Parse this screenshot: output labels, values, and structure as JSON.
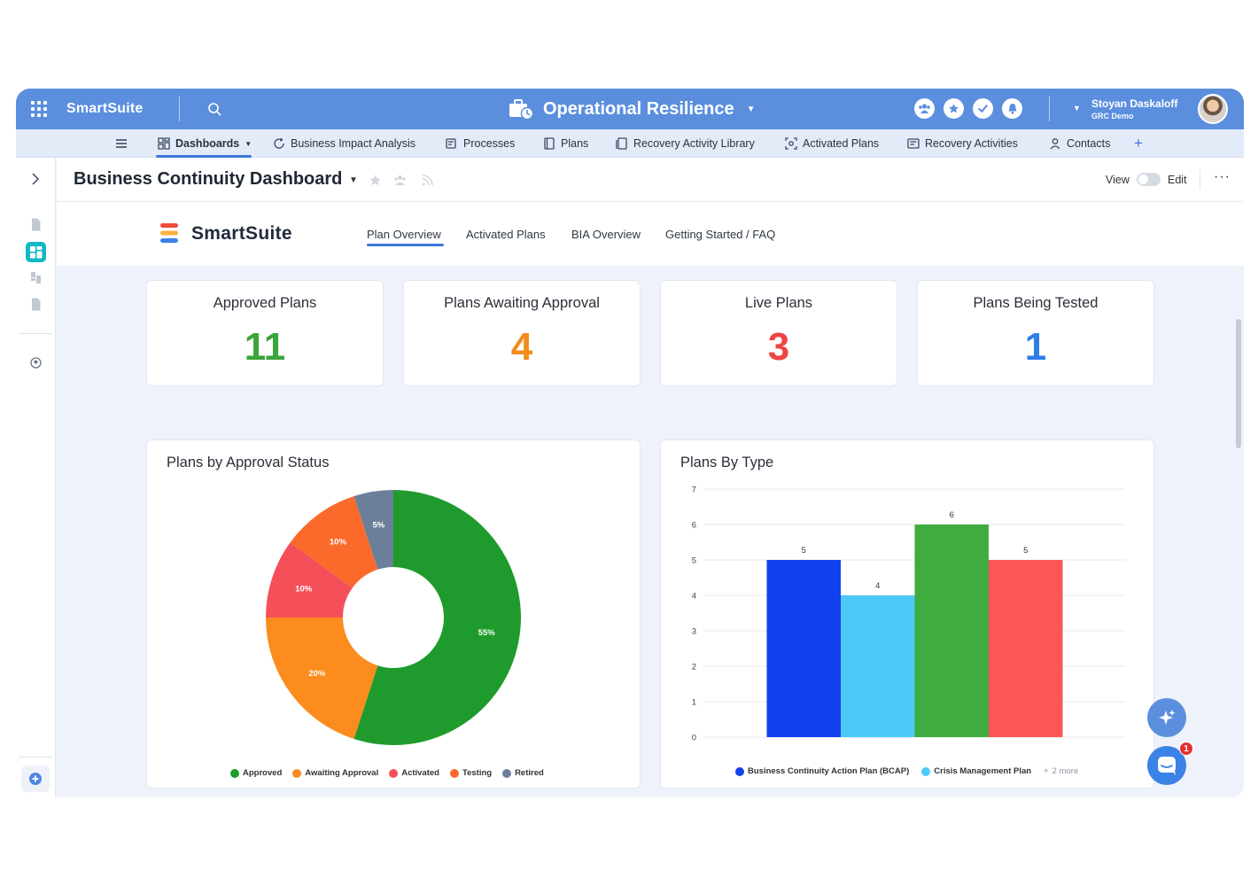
{
  "topbar": {
    "brand": "SmartSuite",
    "solution_title": "Operational Resilience",
    "user_name": "Stoyan Daskaloff",
    "user_workspace": "GRC Demo"
  },
  "nav": {
    "items": [
      {
        "label": "Dashboards",
        "icon": "dashboard-icon"
      },
      {
        "label": "Business Impact Analysis",
        "icon": "refresh-icon"
      },
      {
        "label": "Processes",
        "icon": "process-icon"
      },
      {
        "label": "Plans",
        "icon": "book-icon"
      },
      {
        "label": "Recovery Activity Library",
        "icon": "library-icon"
      },
      {
        "label": "Activated Plans",
        "icon": "activated-icon"
      },
      {
        "label": "Recovery Activities",
        "icon": "list-icon"
      },
      {
        "label": "Contacts",
        "icon": "person-icon"
      }
    ]
  },
  "dashboard": {
    "title": "Business Continuity Dashboard",
    "view_label": "View",
    "edit_label": "Edit"
  },
  "tabs": {
    "logo_text": "SmartSuite",
    "items": [
      "Plan Overview",
      "Activated Plans",
      "BIA Overview",
      "Getting Started / FAQ"
    ],
    "active": "Plan Overview"
  },
  "kpis": [
    {
      "title": "Approved Plans",
      "value": "11",
      "color": "#3aa53a"
    },
    {
      "title": "Plans Awaiting Approval",
      "value": "4",
      "color": "#f28c1b"
    },
    {
      "title": "Live Plans",
      "value": "3",
      "color": "#ef4444"
    },
    {
      "title": "Plans Being Tested",
      "value": "1",
      "color": "#2f7ee8"
    }
  ],
  "donut": {
    "title": "Plans by Approval Status",
    "legend": [
      {
        "label": "Approved",
        "color": "#1e9b2c"
      },
      {
        "label": "Awaiting Approval",
        "color": "#fb8c1d"
      },
      {
        "label": "Activated",
        "color": "#f5505a"
      },
      {
        "label": "Testing",
        "color": "#fb6a2a"
      },
      {
        "label": "Retired",
        "color": "#6b7f9a"
      }
    ]
  },
  "bar": {
    "title": "Plans By Type",
    "legend": [
      {
        "label": "Business Continuity Action Plan (BCAP)",
        "color": "#1240ec"
      },
      {
        "label": "Crisis Management Plan",
        "color": "#4ccaf7"
      }
    ],
    "more_label": "2 more"
  },
  "chart_data": [
    {
      "type": "pie",
      "title": "Plans by Approval Status",
      "categories": [
        "Approved",
        "Awaiting Approval",
        "Activated",
        "Testing",
        "Retired"
      ],
      "values": [
        55,
        20,
        10,
        10,
        5
      ],
      "labels": [
        "55%",
        "20%",
        "10%",
        "10%",
        "5%"
      ],
      "colors": [
        "#1e9b2c",
        "#fb8c1d",
        "#f5505a",
        "#fb6a2a",
        "#6b7f9a"
      ],
      "donut": true,
      "legend": "bottom"
    },
    {
      "type": "bar",
      "title": "Plans By Type",
      "categories": [
        "Business Continuity Action Plan (BCAP)",
        "Crisis Management Plan",
        "",
        ""
      ],
      "values": [
        5,
        4,
        6,
        5
      ],
      "colors": [
        "#1240ec",
        "#4ccaf7",
        "#40ac40",
        "#fd5656"
      ],
      "ylim": [
        0,
        7
      ],
      "yticks": [
        0,
        1,
        2,
        3,
        4,
        5,
        6,
        7
      ],
      "grid": true,
      "legend": "bottom"
    }
  ],
  "chat": {
    "badge_count": "1"
  }
}
